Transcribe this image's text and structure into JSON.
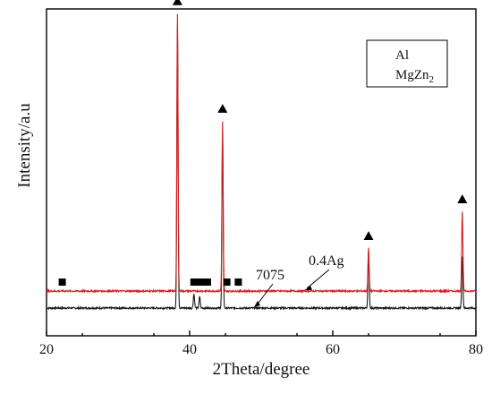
{
  "chart_data": {
    "type": "line",
    "xlabel": "2Theta/degree",
    "ylabel": "Intensity/a.u",
    "xlim": [
      20,
      80
    ],
    "xticks": [
      20,
      40,
      60,
      80
    ],
    "y_ticks_labeled": false,
    "grid": false,
    "legend_position": "top-right",
    "legend": [
      {
        "label": "Al",
        "marker": "triangle"
      },
      {
        "label": "MgZn",
        "subscript": "2",
        "marker": "square"
      }
    ],
    "series": [
      {
        "name": "7075",
        "color": "#1a1a1a",
        "baseline": 0.0,
        "peaks": [
          [
            38.3,
            1.0
          ],
          [
            40.6,
            0.05
          ],
          [
            41.4,
            0.04
          ],
          [
            44.6,
            0.62
          ],
          [
            65.0,
            0.2
          ],
          [
            78.1,
            0.18
          ]
        ]
      },
      {
        "name": "0.4Ag",
        "color": "#d62020",
        "baseline": 0.06,
        "peaks": [
          [
            38.3,
            0.98
          ],
          [
            44.6,
            0.6
          ],
          [
            65.0,
            0.15
          ],
          [
            78.1,
            0.28
          ]
        ]
      }
    ],
    "phase_markers": {
      "Al": [
        38.3,
        44.6,
        65.0,
        78.1
      ],
      "MgZn2": [
        22.2,
        40.6,
        41.5,
        42.5,
        45.2,
        46.8
      ]
    },
    "annotations": [
      {
        "text": "7075",
        "target_x": 49.0,
        "series": "7075"
      },
      {
        "text": "0.4Ag",
        "target_x": 56.0,
        "series": "0.4Ag"
      }
    ],
    "colors": {
      "axis": "#000000",
      "series_7075": "#1a1a1a",
      "series_ag": "#d62020"
    }
  }
}
